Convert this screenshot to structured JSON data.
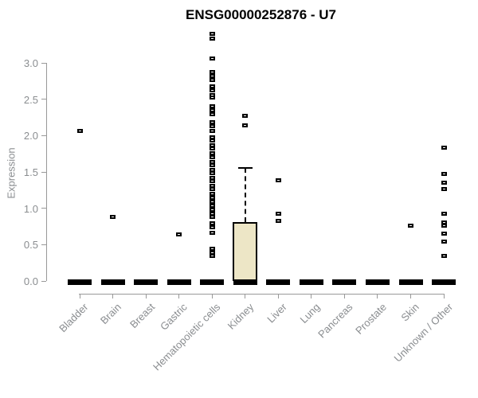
{
  "chart_data": {
    "type": "box",
    "title": "ENSG00000252876 - U7",
    "ylabel": "Expression",
    "yticks": [
      "0.0",
      "0.5",
      "1.0",
      "1.5",
      "2.0",
      "2.5",
      "3.0"
    ],
    "ylim": [
      0,
      3.45
    ],
    "grid": false,
    "legend": "none",
    "categories": [
      "Bladder",
      "Brain",
      "Breast",
      "Gastric",
      "Hematopoietic cells",
      "Kidney",
      "Liver",
      "Lung",
      "Pancreas",
      "Prostate",
      "Skin",
      "Unknown / Other"
    ],
    "boxes": [
      {
        "category": "Bladder",
        "median": 0.0,
        "q1": 0.0,
        "q3": 0.0,
        "outliers": [
          2.06
        ]
      },
      {
        "category": "Brain",
        "median": 0.0,
        "q1": 0.0,
        "q3": 0.0,
        "outliers": [
          0.88
        ]
      },
      {
        "category": "Breast",
        "median": 0.0,
        "q1": 0.0,
        "q3": 0.0,
        "outliers": []
      },
      {
        "category": "Gastric",
        "median": 0.0,
        "q1": 0.0,
        "q3": 0.0,
        "outliers": [
          0.64
        ]
      },
      {
        "category": "Hematopoietic cells",
        "median": 0.0,
        "q1": 0.0,
        "q3": 0.0,
        "outliers": [
          3.4,
          3.33,
          3.06,
          2.88,
          2.82,
          2.77,
          2.68,
          2.62,
          2.56,
          2.52,
          2.4,
          2.35,
          2.29,
          2.18,
          2.13,
          2.07,
          1.98,
          1.93,
          1.87,
          1.82,
          1.76,
          1.7,
          1.64,
          1.59,
          1.53,
          1.48,
          1.42,
          1.37,
          1.31,
          1.26,
          1.2,
          1.15,
          1.09,
          1.04,
          0.98,
          0.93,
          0.88,
          0.79,
          0.74,
          0.66,
          0.44,
          0.39,
          0.35
        ]
      },
      {
        "category": "Kidney",
        "median": 0.0,
        "q1": 0.0,
        "q3": 0.81,
        "whisker_high": 1.55,
        "outliers": [
          2.27,
          2.14
        ]
      },
      {
        "category": "Liver",
        "median": 0.0,
        "q1": 0.0,
        "q3": 0.0,
        "outliers": [
          1.39,
          0.93,
          0.83
        ]
      },
      {
        "category": "Lung",
        "median": 0.0,
        "q1": 0.0,
        "q3": 0.0,
        "outliers": []
      },
      {
        "category": "Pancreas",
        "median": 0.0,
        "q1": 0.0,
        "q3": 0.0,
        "outliers": []
      },
      {
        "category": "Prostate",
        "median": 0.0,
        "q1": 0.0,
        "q3": 0.0,
        "outliers": []
      },
      {
        "category": "Skin",
        "median": 0.0,
        "q1": 0.0,
        "q3": 0.0,
        "outliers": [
          0.76
        ]
      },
      {
        "category": "Unknown / Other",
        "median": 0.0,
        "q1": 0.0,
        "q3": 0.0,
        "outliers": [
          1.83,
          1.47,
          1.35,
          1.26,
          0.93,
          0.81,
          0.76,
          0.65,
          0.54,
          0.35
        ]
      }
    ],
    "colors": {
      "box_fill": "#ede6c6",
      "box_border": "#000000",
      "marker": "#000000",
      "axis": "#999999",
      "label_text": "#8a8d90",
      "title_text": "#000000"
    }
  }
}
